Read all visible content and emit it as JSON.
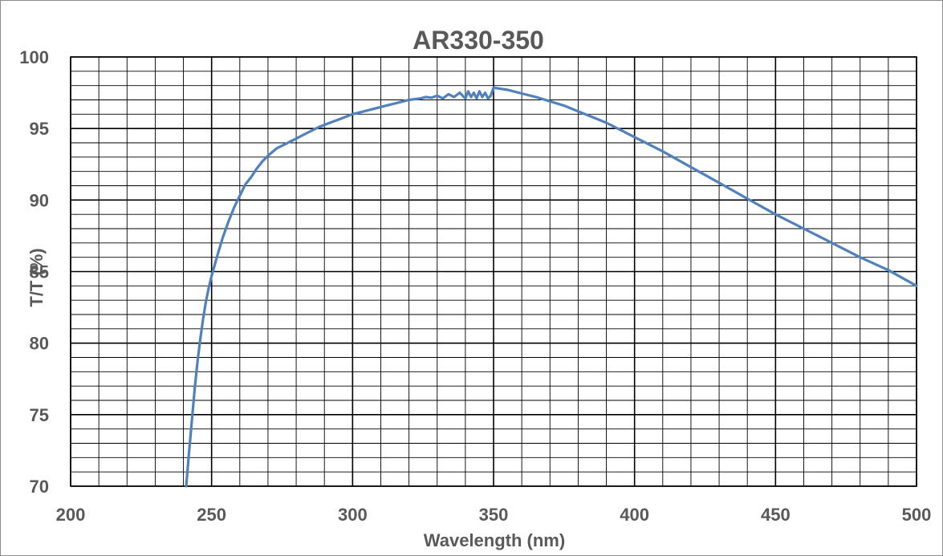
{
  "chart_data": {
    "type": "line",
    "title": "AR330-350",
    "xlabel": "Wavelength (nm)",
    "ylabel": "T/T (%)",
    "xlim": [
      200,
      500
    ],
    "ylim": [
      70,
      100
    ],
    "x_ticks": [
      200,
      250,
      300,
      350,
      400,
      450,
      500
    ],
    "y_ticks": [
      70,
      75,
      80,
      85,
      90,
      95,
      100
    ],
    "x_minor_step": 10,
    "y_minor_step": 1,
    "grid": true,
    "legend": "none",
    "series_color": "#4f81bd",
    "series": [
      {
        "x": [
          241,
          242,
          243,
          244,
          245,
          246,
          247,
          248,
          249,
          250,
          252,
          254,
          256,
          258,
          260,
          262,
          264,
          266,
          268,
          270,
          273,
          276,
          280,
          284,
          288,
          292,
          296,
          300,
          304,
          308,
          312,
          316,
          320,
          324,
          326,
          328,
          330,
          332,
          334,
          336,
          338,
          340,
          341,
          342,
          343,
          344,
          345,
          346,
          347,
          348,
          349,
          350,
          355,
          360,
          365,
          370,
          375,
          380,
          385,
          390,
          395,
          400,
          410,
          420,
          430,
          440,
          450,
          460,
          470,
          480,
          490,
          500
        ],
        "y": [
          70.0,
          72.4,
          74.6,
          76.8,
          78.7,
          80.3,
          81.7,
          82.9,
          83.9,
          84.7,
          86.1,
          87.4,
          88.5,
          89.5,
          90.3,
          91.1,
          91.6,
          92.2,
          92.7,
          93.1,
          93.6,
          93.9,
          94.3,
          94.7,
          95.1,
          95.4,
          95.7,
          96.0,
          96.2,
          96.4,
          96.6,
          96.8,
          97.0,
          97.1,
          97.2,
          97.15,
          97.3,
          97.1,
          97.4,
          97.2,
          97.5,
          97.1,
          97.6,
          97.2,
          97.5,
          97.1,
          97.6,
          97.2,
          97.5,
          97.1,
          97.3,
          97.85,
          97.7,
          97.45,
          97.2,
          96.9,
          96.6,
          96.2,
          95.8,
          95.4,
          94.9,
          94.4,
          93.4,
          92.3,
          91.2,
          90.1,
          89.0,
          88.0,
          87.0,
          86.0,
          85.1,
          84.0
        ]
      }
    ]
  }
}
